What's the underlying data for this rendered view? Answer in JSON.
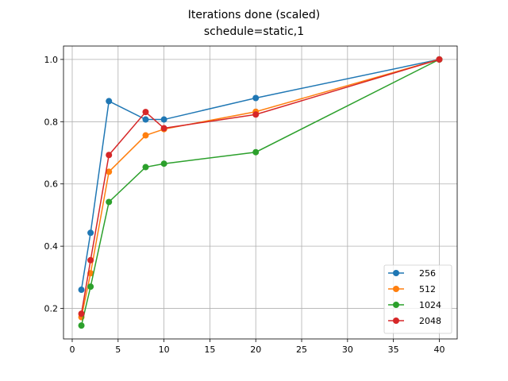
{
  "chart_data": {
    "type": "line",
    "title": "Iterations done (scaled)",
    "subtitle": "schedule=static,1",
    "xlabel": "",
    "ylabel": "",
    "x": [
      1,
      2,
      4,
      8,
      10,
      20,
      40
    ],
    "xlim": [
      -0.95,
      41.95
    ],
    "ylim": [
      0.102,
      1.043
    ],
    "xticks": [
      0,
      5,
      10,
      15,
      20,
      25,
      30,
      35,
      40
    ],
    "yticks": [
      0.2,
      0.4,
      0.6,
      0.8,
      1.0
    ],
    "ytick_labels": [
      "0.2",
      "0.4",
      "0.6",
      "0.8",
      "1.0"
    ],
    "grid": true,
    "legend_position": "lower right",
    "series": [
      {
        "name": "256",
        "color": "#1f77b4",
        "values": [
          0.26,
          0.443,
          0.866,
          0.807,
          0.807,
          0.876,
          1.0
        ]
      },
      {
        "name": "512",
        "color": "#ff7f0e",
        "values": [
          0.172,
          0.313,
          0.639,
          0.756,
          0.776,
          0.832,
          1.0
        ]
      },
      {
        "name": "1024",
        "color": "#2ca02c",
        "values": [
          0.145,
          0.27,
          0.542,
          0.654,
          0.665,
          0.702,
          1.0
        ]
      },
      {
        "name": "2048",
        "color": "#d62728",
        "values": [
          0.183,
          0.355,
          0.693,
          0.831,
          0.779,
          0.823,
          1.0
        ]
      }
    ]
  }
}
